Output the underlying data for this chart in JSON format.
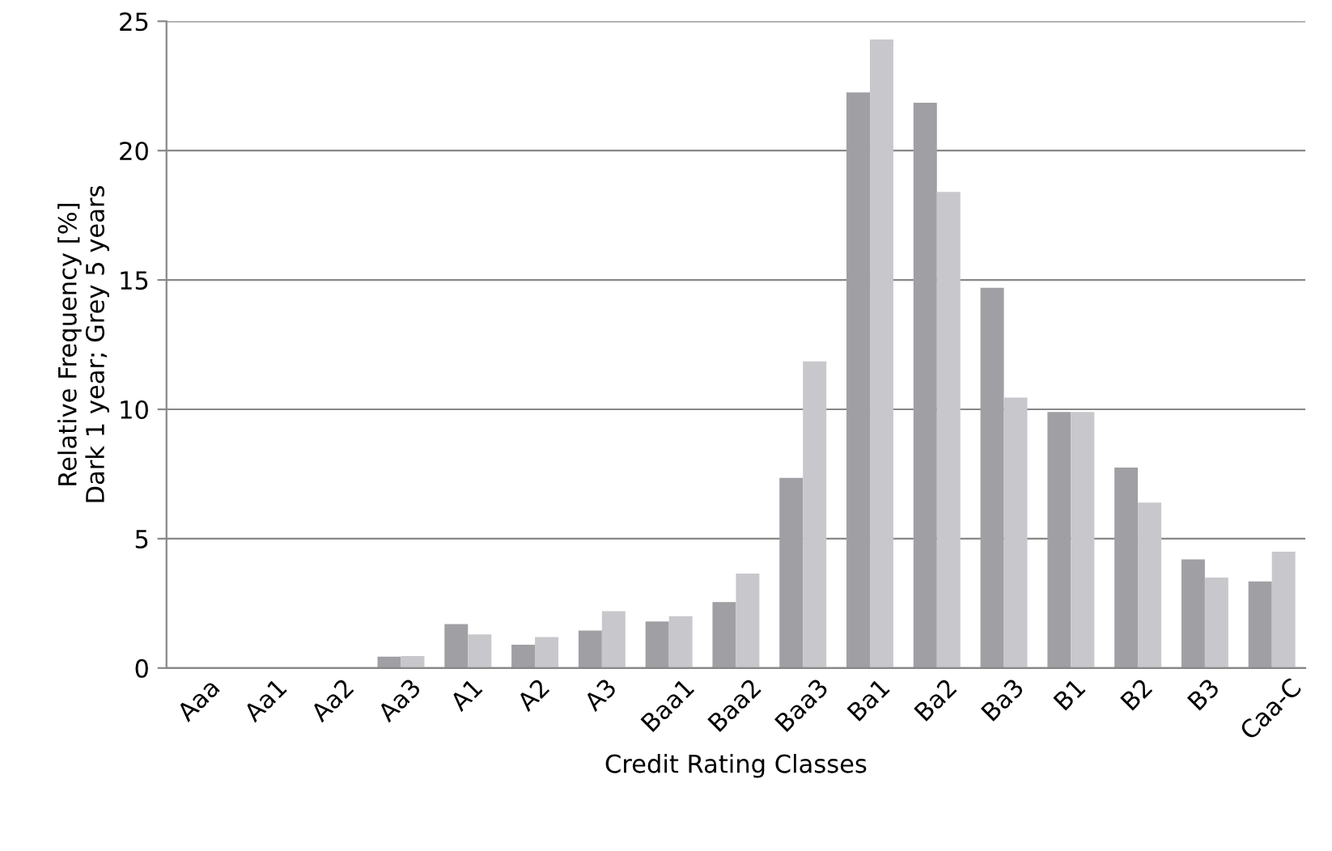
{
  "chart_data": {
    "type": "bar",
    "xlabel": "Credit Rating Classes",
    "ylabel": "Relative Frequency [%]\nDark 1 year; Grey 5 years",
    "categories": [
      "Aaa",
      "Aa1",
      "Aa2",
      "Aa3",
      "A1",
      "A2",
      "A3",
      "Baa1",
      "Baa2",
      "Baa3",
      "Ba1",
      "Ba2",
      "Ba3",
      "B1",
      "B2",
      "B3",
      "Caa-C"
    ],
    "series": [
      {
        "color": "#a0a0a4",
        "values": [
          0,
          0,
          0,
          0.44,
          1.7,
          0.9,
          1.45,
          1.8,
          2.55,
          7.35,
          22.25,
          21.85,
          14.7,
          9.9,
          7.75,
          4.2,
          3.35
        ]
      },
      {
        "color": "#c8c8cc",
        "values": [
          0,
          0,
          0,
          0.46,
          1.3,
          1.2,
          2.2,
          2.0,
          3.65,
          11.85,
          24.3,
          18.4,
          10.45,
          9.9,
          6.4,
          3.5,
          4.5
        ]
      }
    ],
    "ylim": [
      0,
      25
    ],
    "yticks": [
      0,
      5,
      10,
      15,
      20,
      25
    ],
    "grid": "y",
    "legend": false
  }
}
